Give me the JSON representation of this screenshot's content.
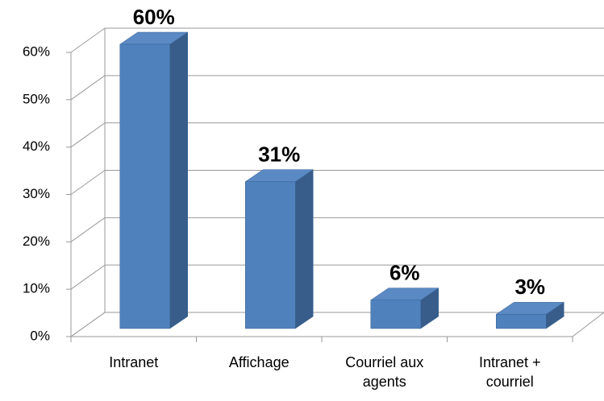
{
  "chart_data": {
    "type": "bar3d",
    "categories": [
      "Intranet",
      "Affichage",
      "Courriel aux agents",
      "Intranet + courriel"
    ],
    "values": [
      60,
      31,
      6,
      3
    ],
    "value_labels": [
      "60%",
      "31%",
      "6%",
      "3%"
    ],
    "color": "#4f81bd",
    "ylim": [
      0,
      60
    ],
    "yticks": [
      {
        "value": 0,
        "label": "0%"
      },
      {
        "value": 10,
        "label": "10%"
      },
      {
        "value": 20,
        "label": "20%"
      },
      {
        "value": 30,
        "label": "30%"
      },
      {
        "value": 40,
        "label": "40%"
      },
      {
        "value": 50,
        "label": "50%"
      },
      {
        "value": 60,
        "label": "60%"
      }
    ],
    "grid": true
  }
}
